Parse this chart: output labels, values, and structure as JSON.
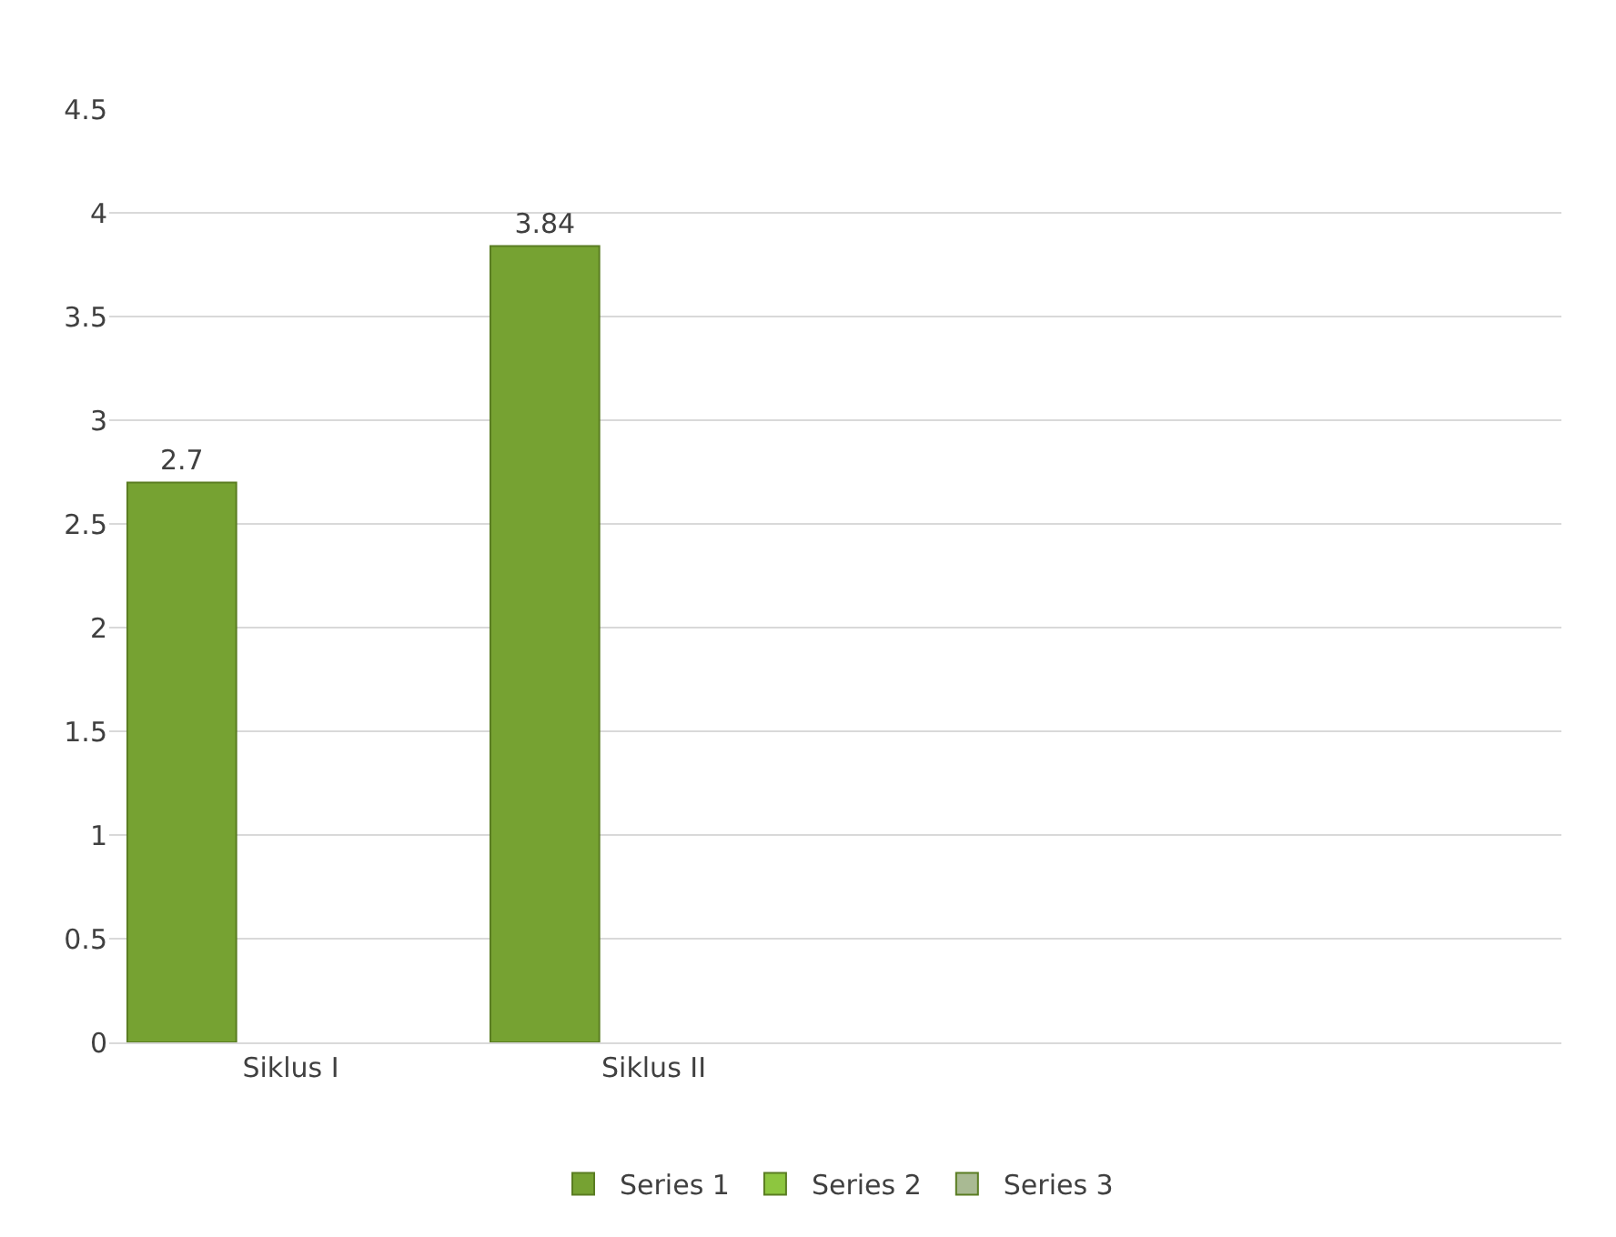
{
  "chart_data": {
    "type": "bar",
    "categories": [
      "Siklus I",
      "Siklus II",
      null,
      null
    ],
    "series": [
      {
        "name": "Series 1",
        "color": "#76a232",
        "values": [
          2.7,
          3.84,
          null,
          null
        ]
      },
      {
        "name": "Series 2",
        "color": "#8dc63f",
        "values": [
          null,
          null,
          null,
          null
        ]
      },
      {
        "name": "Series 3",
        "color": "#a9ba93",
        "values": [
          null,
          null,
          null,
          null
        ]
      }
    ],
    "ylim": [
      0,
      4.5
    ],
    "yticks": [
      0,
      0.5,
      1,
      1.5,
      2,
      2.5,
      3,
      3.5,
      4,
      4.5
    ],
    "grid": "y",
    "legend": "bottom",
    "data_labels": true
  }
}
